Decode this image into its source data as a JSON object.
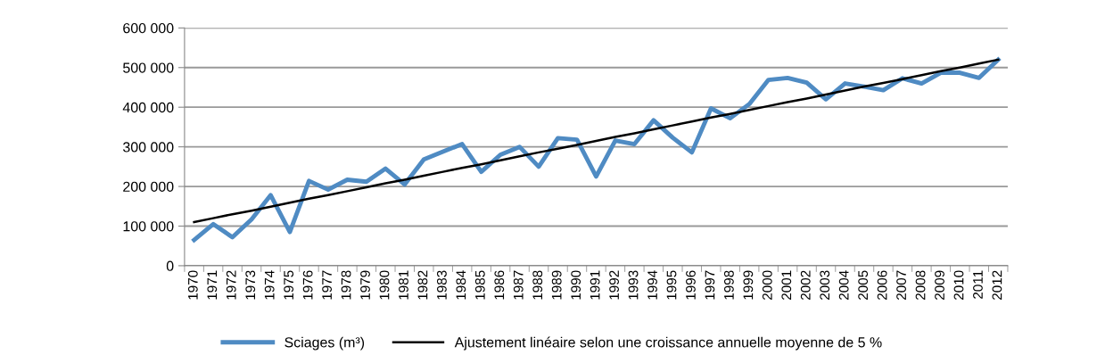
{
  "chart_data": {
    "type": "line",
    "categories": [
      "1970",
      "1971",
      "1972",
      "1973",
      "1974",
      "1975",
      "1976",
      "1977",
      "1978",
      "1979",
      "1980",
      "1981",
      "1982",
      "1983",
      "1984",
      "1985",
      "1986",
      "1987",
      "1988",
      "1989",
      "1990",
      "1991",
      "1992",
      "1993",
      "1994",
      "1995",
      "1996",
      "1997",
      "1998",
      "1999",
      "2000",
      "2001",
      "2002",
      "2003",
      "2004",
      "2005",
      "2006",
      "2007",
      "2008",
      "2009",
      "2010",
      "2011",
      "2012"
    ],
    "series": [
      {
        "name": "Sciages (m³)",
        "color": "#4f8bc3",
        "values": [
          65000,
          105000,
          72000,
          117000,
          178000,
          85000,
          214000,
          192000,
          217000,
          212000,
          245000,
          205000,
          268000,
          288000,
          307000,
          237000,
          280000,
          300000,
          250000,
          322000,
          318000,
          225000,
          316000,
          307000,
          367000,
          323000,
          286000,
          397000,
          372000,
          408000,
          469000,
          474000,
          462000,
          420000,
          460000,
          452000,
          443000,
          473000,
          460000,
          487000,
          487000,
          474000,
          520000
        ]
      },
      {
        "name": "Ajustement linéaire selon une croissance annuelle moyenne de 5 %",
        "color": "#000000",
        "type": "line",
        "values": [
          110000,
          120000,
          130000,
          139000,
          149000,
          159000,
          169000,
          178000,
          188000,
          198000,
          208000,
          217000,
          227000,
          237000,
          247000,
          256000,
          266000,
          276000,
          286000,
          295000,
          305000,
          315000,
          325000,
          334000,
          344000,
          354000,
          364000,
          374000,
          383000,
          393000,
          403000,
          413000,
          422000,
          432000,
          442000,
          452000,
          461000,
          471000,
          481000,
          491000,
          500000,
          510000,
          520000
        ]
      }
    ],
    "ylim": [
      0,
      600000
    ],
    "yticks": [
      0,
      {
        "value": 100000,
        "label": "100 000"
      },
      {
        "value": 200000,
        "label": "200 000"
      },
      {
        "value": 300000,
        "label": "300 000"
      },
      {
        "value": 400000,
        "label": "400 000"
      },
      {
        "value": 500000,
        "label": "500 000"
      },
      {
        "value": 600000,
        "label": "600 000"
      }
    ],
    "grid": "y",
    "legend": "bottom",
    "marker": "none",
    "line_style": "solid"
  }
}
